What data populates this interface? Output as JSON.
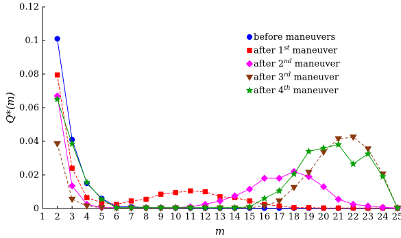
{
  "chart_data": {
    "type": "line",
    "xlabel": "m",
    "ylabel": "Q*(m)",
    "xlim": [
      1,
      25
    ],
    "ylim": [
      0,
      0.12
    ],
    "x_ticks": [
      1,
      2,
      3,
      4,
      5,
      6,
      7,
      8,
      9,
      10,
      11,
      12,
      13,
      14,
      15,
      16,
      17,
      18,
      19,
      20,
      21,
      22,
      23,
      24,
      25
    ],
    "y_ticks": [
      {
        "value": 0,
        "label": "0"
      },
      {
        "value": 0.02,
        "label": "0.02"
      },
      {
        "value": 0.04,
        "label": "0.04"
      },
      {
        "value": 0.06,
        "label": "0.06"
      },
      {
        "value": 0.08,
        "label": "0.08"
      },
      {
        "value": 0.1,
        "label": "0.1"
      },
      {
        "value": 0.12,
        "label": "0.12"
      }
    ],
    "grid": false,
    "legend_position": "top-right",
    "x": [
      2,
      3,
      4,
      5,
      6,
      7,
      8,
      9,
      10,
      11,
      12,
      13,
      14,
      15,
      16,
      17,
      18,
      19,
      20,
      21,
      22,
      23,
      24,
      25
    ],
    "series": [
      {
        "name": "before maneuvers",
        "base": "before maneuvers",
        "sup": "",
        "color": "#0000ff",
        "marker": "circle",
        "dash": "",
        "values": [
          0.101,
          0.041,
          0.015,
          0.006,
          0.001,
          0.001,
          0.0005,
          0.0004,
          0.0003,
          0.0003,
          0.0002,
          0.0002,
          0.0002,
          0.0002,
          0.0002,
          0.0002,
          0.0002,
          0.0002,
          0.0002,
          0.0002,
          0.0002,
          0.0002,
          0.0002,
          0.0001
        ]
      },
      {
        "name": "after 1st maneuver",
        "base": "after 1",
        "sup": "st",
        "rest": " maneuver",
        "color": "#ff0000",
        "marker": "square",
        "dash": "4,2",
        "values": [
          0.0795,
          0.024,
          0.0065,
          0.0035,
          0.0025,
          0.0045,
          0.0055,
          0.0085,
          0.0095,
          0.0105,
          0.01,
          0.007,
          0.0065,
          0.0045,
          0.0025,
          0.0015,
          0.0005,
          0.0005,
          0.0003,
          0.0003,
          0.0003,
          0.0003,
          0.0003,
          0.0002
        ]
      },
      {
        "name": "after 2nd maneuver",
        "base": "after 2",
        "sup": "nd",
        "rest": " maneuver",
        "color": "#ff00ff",
        "marker": "diamond",
        "dash": "",
        "values": [
          0.067,
          0.0135,
          0.0025,
          0.0005,
          0.0005,
          0.0005,
          0.0005,
          0.0005,
          0.0005,
          0.001,
          0.0025,
          0.0045,
          0.0075,
          0.0115,
          0.018,
          0.018,
          0.022,
          0.019,
          0.013,
          0.0055,
          0.0025,
          0.0015,
          0.0007,
          0.0003
        ]
      },
      {
        "name": "after 3rd maneuver",
        "base": "after 3",
        "sup": "rd",
        "rest": " maneuver",
        "color": "#8b3a0f",
        "marker": "triangle-down",
        "dash": "4,3",
        "values": [
          0.0385,
          0.0055,
          0.0015,
          0.0005,
          0.0003,
          0.0003,
          0.0003,
          0.0003,
          0.0003,
          0.0003,
          0.0003,
          0.0003,
          0.0003,
          0.0005,
          0.0015,
          0.0045,
          0.0125,
          0.0215,
          0.0335,
          0.0415,
          0.0425,
          0.0355,
          0.0205,
          0.0003
        ]
      },
      {
        "name": "after 4th maneuver",
        "base": "after 4",
        "sup": "th",
        "rest": " maneuver",
        "color": "#00a000",
        "marker": "star",
        "dash": "",
        "values": [
          0.065,
          0.0385,
          0.0155,
          0.0055,
          0.0005,
          0.0005,
          0.0005,
          0.0005,
          0.0005,
          0.0005,
          0.0005,
          0.0005,
          0.0005,
          0.001,
          0.006,
          0.0105,
          0.0205,
          0.034,
          0.036,
          0.038,
          0.0265,
          0.0325,
          0.019,
          0.0003
        ]
      }
    ]
  }
}
